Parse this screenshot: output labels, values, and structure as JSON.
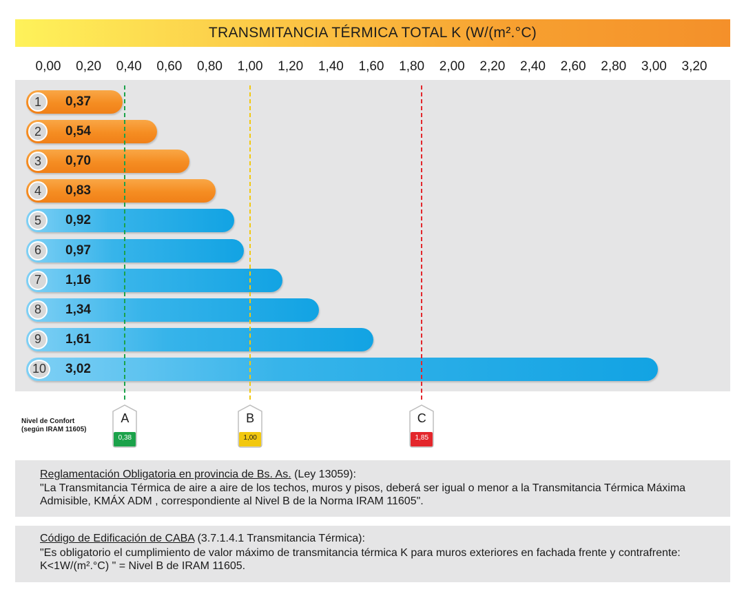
{
  "chart_data": {
    "type": "bar",
    "orientation": "horizontal",
    "title": "TRANSMITANCIA TÉRMICA TOTAL K (W/(m².°C)",
    "xlim": [
      0,
      3.2
    ],
    "x_ticks": [
      "0,00",
      "0,20",
      "0,40",
      "0,60",
      "0,80",
      "1,00",
      "1,20",
      "1,40",
      "1,60",
      "1,80",
      "2,00",
      "2,20",
      "2,40",
      "2,60",
      "2,80",
      "3,00",
      "3,20"
    ],
    "categories": [
      "1",
      "2",
      "3",
      "4",
      "5",
      "6",
      "7",
      "8",
      "9",
      "10"
    ],
    "values": [
      0.37,
      0.54,
      0.7,
      0.83,
      0.92,
      0.97,
      1.16,
      1.34,
      1.61,
      3.02
    ],
    "value_labels": [
      "0,37",
      "0,54",
      "0,70",
      "0,83",
      "0,92",
      "0,97",
      "1,16",
      "1,34",
      "1,61",
      "3,02"
    ],
    "bar_colors": [
      "#f58d22",
      "#f58d22",
      "#f58d22",
      "#f58d22",
      "#12a3e3",
      "#12a3e3",
      "#12a3e3",
      "#12a3e3",
      "#12a3e3",
      "#12a3e3"
    ],
    "reference_lines": [
      {
        "letter": "A",
        "value": 0.38,
        "label": "0,38",
        "color": "#1ba24a"
      },
      {
        "letter": "B",
        "value": 1.0,
        "label": "1,00",
        "color": "#f2c80f"
      },
      {
        "letter": "C",
        "value": 1.85,
        "label": "1,85",
        "color": "#e3262b"
      }
    ],
    "comfort_label_line1": "Nivel de Confort",
    "comfort_label_line2": "(según IRAM 11605)"
  },
  "notes": [
    {
      "heading": "Reglamentación Obligatoria en provincia de Bs. As.",
      "heading_suffix": " (Ley 13059):",
      "body": "\"La Transmitancia Térmica de aire a aire de los techos, muros y pisos, deberá ser igual o menor a la Transmitancia Térmica Máxima Admisible, KMÁX ADM , correspondiente al Nivel B de la Norma IRAM 11605\"."
    },
    {
      "heading": "Código de Edificación de CABA",
      "heading_suffix": " (3.7.1.4.1 Transmitancia Térmica):",
      "body": "\"Es obligatorio el cumplimiento de valor máximo de transmitancia térmica K para muros exteriores en fachada frente y contrafrente: K<1W/(m².°C) \" = Nivel B de IRAM 11605."
    }
  ]
}
